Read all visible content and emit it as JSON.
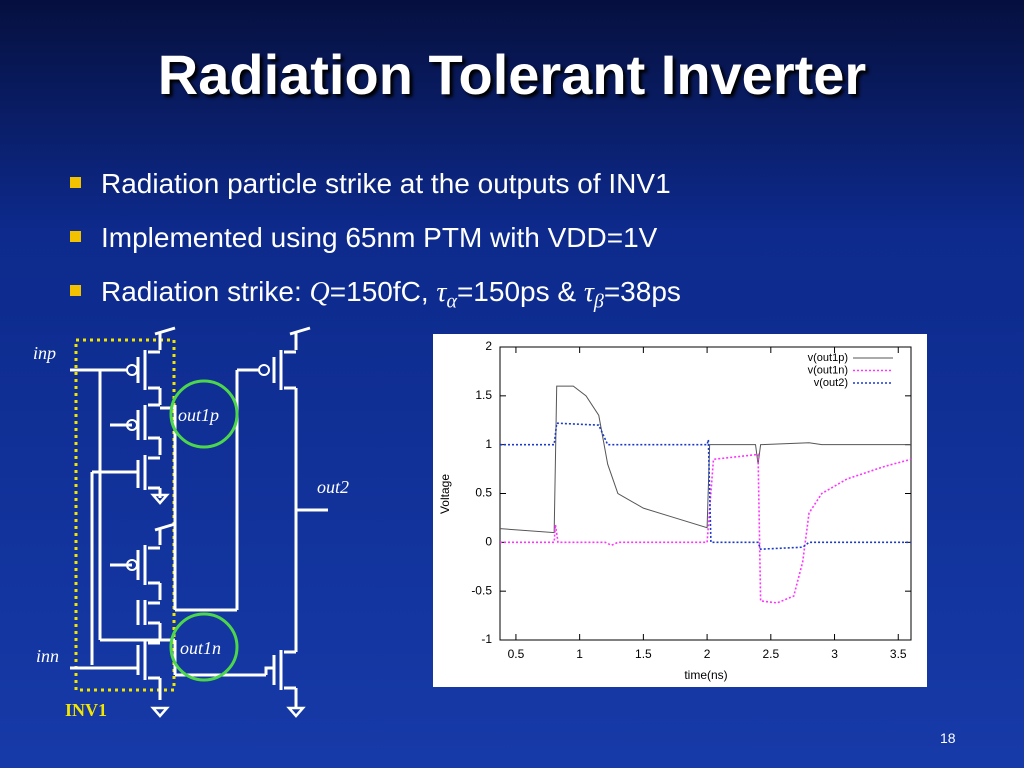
{
  "title": "Radiation Tolerant Inverter",
  "bullets": [
    "Radiation particle strike at the outputs of INV1",
    "Implemented using 65nm PTM with VDD=1V",
    [
      "Radiation strike: ",
      "Q",
      "=150fC, ",
      "τ",
      "α",
      "=150ps & ",
      "τ",
      "β",
      "=38ps"
    ]
  ],
  "diagram": {
    "labels": {
      "inp": "inp",
      "inn": "inn",
      "out1p": "out1p",
      "out1n": "out1n",
      "out2": "out2",
      "inv1": "INV1"
    }
  },
  "page_number": "18",
  "chart_data": {
    "type": "line",
    "xlabel": "time(ns)",
    "ylabel": "Voltage",
    "xlim": [
      0.375,
      3.6
    ],
    "xticks": [
      0.5,
      1,
      1.5,
      2,
      2.5,
      3,
      3.5
    ],
    "ylim": [
      -1,
      2
    ],
    "yticks": [
      -1,
      -0.5,
      0,
      0.5,
      1,
      1.5,
      2
    ],
    "grid": false,
    "legend": "upper right",
    "series": [
      {
        "name": "v(out1p)",
        "color": "#555555",
        "style": "solid",
        "x": [
          0.375,
          0.8,
          0.82,
          0.95,
          1.05,
          1.15,
          1.22,
          1.3,
          1.5,
          1.75,
          2.0,
          2.02,
          2.38,
          2.4,
          2.42,
          2.8,
          2.9,
          3.6
        ],
        "values": [
          0.14,
          0.1,
          1.6,
          1.6,
          1.5,
          1.3,
          0.8,
          0.5,
          0.35,
          0.25,
          0.15,
          1.0,
          1.0,
          0.8,
          1.0,
          1.02,
          1.0,
          1.0
        ]
      },
      {
        "name": "v(out1n)",
        "color": "#ff33ff",
        "style": "dotted",
        "x": [
          0.375,
          0.8,
          0.81,
          0.83,
          1.2,
          1.25,
          1.3,
          2.0,
          2.05,
          2.4,
          2.42,
          2.55,
          2.68,
          2.75,
          2.8,
          2.9,
          3.1,
          3.4,
          3.6
        ],
        "values": [
          0,
          0,
          0.18,
          0,
          0,
          -0.03,
          0,
          0,
          0.85,
          0.9,
          -0.6,
          -0.62,
          -0.55,
          -0.2,
          0.3,
          0.5,
          0.65,
          0.78,
          0.85
        ]
      },
      {
        "name": "v(out2)",
        "color": "#1a3acc",
        "style": "dotted",
        "x": [
          0.375,
          0.8,
          0.82,
          1.15,
          1.22,
          2.0,
          2.01,
          2.03,
          2.4,
          2.42,
          2.75,
          2.8,
          3.6
        ],
        "values": [
          1.0,
          1.0,
          1.22,
          1.2,
          1.0,
          1.0,
          1.05,
          0,
          0,
          -0.07,
          -0.05,
          0,
          0
        ]
      }
    ]
  }
}
